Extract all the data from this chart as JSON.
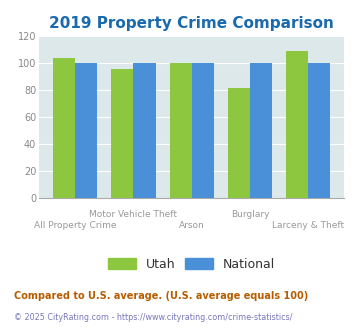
{
  "title": "2019 Property Crime Comparison",
  "categories": [
    "All Property Crime",
    "Motor Vehicle Theft",
    "Arson",
    "Burglary",
    "Larceny & Theft"
  ],
  "utah_values": [
    104,
    96,
    100,
    82,
    109
  ],
  "national_values": [
    100,
    100,
    100,
    100,
    100
  ],
  "utah_color": "#8dc63f",
  "national_color": "#4a90d9",
  "ylim": [
    0,
    120
  ],
  "yticks": [
    0,
    20,
    40,
    60,
    80,
    100,
    120
  ],
  "title_color": "#1a6aad",
  "title_fontsize": 11,
  "background_color": "#dde8ea",
  "legend_utah": "Utah",
  "legend_national": "National",
  "footnote1": "Compared to U.S. average. (U.S. average equals 100)",
  "footnote2": "© 2025 CityRating.com - https://www.cityrating.com/crime-statistics/",
  "footnote1_color": "#b85c00",
  "footnote2_color": "#7777bb",
  "xlabel_color": "#999999",
  "xlabel_fontsize": 6.5,
  "top_row_labels": {
    "1": "Motor Vehicle Theft",
    "3": "Burglary"
  },
  "bot_row_labels": {
    "0": "All Property Crime",
    "2": "Arson",
    "4": "Larceny & Theft"
  }
}
